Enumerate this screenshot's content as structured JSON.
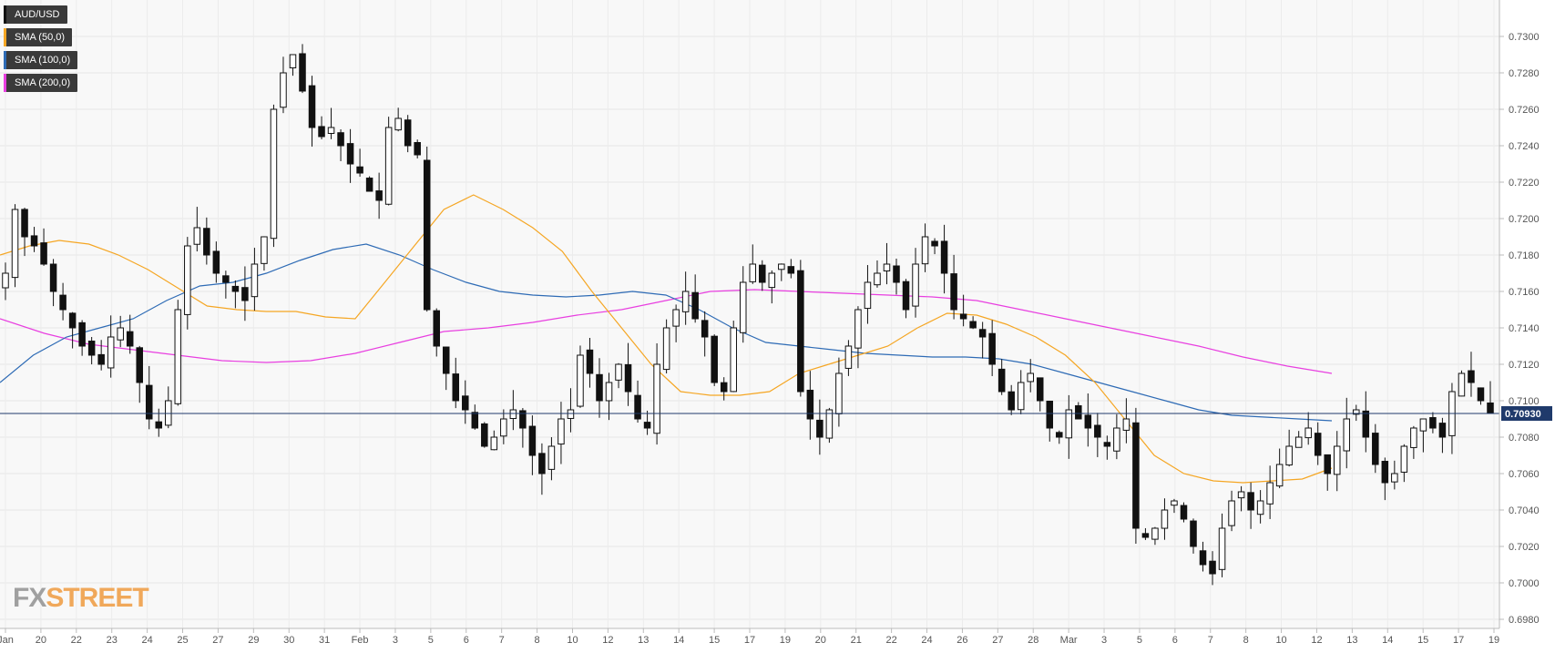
{
  "chart_data": {
    "type": "candlestick",
    "symbol": "AUD/USD",
    "indicators": [
      {
        "name": "SMA (50,0)",
        "color": "#f5a623"
      },
      {
        "name": "SMA (100,0)",
        "color": "#2e6bb5"
      },
      {
        "name": "SMA (200,0)",
        "color": "#e83fe0"
      }
    ],
    "y_ticks": [
      "0.7300",
      "0.7280",
      "0.7260",
      "0.7240",
      "0.7220",
      "0.7200",
      "0.7180",
      "0.7160",
      "0.7140",
      "0.7120",
      "0.7100",
      "0.7080",
      "0.7060",
      "0.7040",
      "0.7020",
      "0.7000",
      "0.6980"
    ],
    "ylim": [
      0.6975,
      0.732
    ],
    "x_ticks": [
      "Jan",
      "20",
      "22",
      "23",
      "24",
      "25",
      "27",
      "29",
      "30",
      "31",
      "Feb",
      "3",
      "5",
      "6",
      "7",
      "8",
      "10",
      "12",
      "13",
      "14",
      "15",
      "17",
      "19",
      "20",
      "21",
      "22",
      "24",
      "26",
      "27",
      "28",
      "Mar",
      "3",
      "5",
      "6",
      "7",
      "8",
      "10",
      "12",
      "13",
      "14",
      "15",
      "17",
      "19"
    ],
    "current_price": "0.70930",
    "current_value": 0.7093,
    "grid": true,
    "legend_position": "top-left",
    "price_path": [
      0.717,
      0.7205,
      0.719,
      0.7185,
      0.7175,
      0.716,
      0.715,
      0.714,
      0.713,
      0.7125,
      0.712,
      0.7135,
      0.714,
      0.713,
      0.711,
      0.709,
      0.7085,
      0.71,
      0.715,
      0.7185,
      0.7195,
      0.718,
      0.717,
      0.7165,
      0.716,
      0.7155,
      0.7175,
      0.719,
      0.726,
      0.728,
      0.729,
      0.727,
      0.725,
      0.7245,
      0.725,
      0.724,
      0.723,
      0.7225,
      0.7215,
      0.721,
      0.725,
      0.7255,
      0.724,
      0.7235,
      0.715,
      0.713,
      0.7115,
      0.71,
      0.7095,
      0.7085,
      0.7075,
      0.708,
      0.709,
      0.7095,
      0.7085,
      0.707,
      0.706,
      0.7075,
      0.709,
      0.7095,
      0.7125,
      0.7115,
      0.71,
      0.711,
      0.712,
      0.7105,
      0.709,
      0.7085,
      0.712,
      0.714,
      0.715,
      0.716,
      0.7145,
      0.7135,
      0.711,
      0.7105,
      0.714,
      0.7165,
      0.7175,
      0.7165,
      0.717,
      0.7175,
      0.717,
      0.7105,
      0.709,
      0.708,
      0.7095,
      0.7115,
      0.713,
      0.715,
      0.7165,
      0.717,
      0.7175,
      0.7165,
      0.715,
      0.7175,
      0.719,
      0.7185,
      0.717,
      0.715,
      0.7145,
      0.714,
      0.7135,
      0.712,
      0.7105,
      0.7095,
      0.711,
      0.7115,
      0.71,
      0.7085,
      0.708,
      0.7095,
      0.709,
      0.7085,
      0.708,
      0.7075,
      0.7085,
      0.709,
      0.703,
      0.7025,
      0.703,
      0.704,
      0.7045,
      0.7035,
      0.702,
      0.701,
      0.7005,
      0.703,
      0.7045,
      0.705,
      0.704,
      0.7045,
      0.7055,
      0.7065,
      0.7075,
      0.708,
      0.7085,
      0.707,
      0.706,
      0.7075,
      0.709,
      0.7095,
      0.708,
      0.7065,
      0.7055,
      0.706,
      0.7075,
      0.7085,
      0.709,
      0.7085,
      0.708,
      0.7105,
      0.7115,
      0.711,
      0.71,
      0.7093
    ],
    "sma50": [
      0.718,
      0.7185,
      0.7188,
      0.7186,
      0.718,
      0.7172,
      0.7162,
      0.7152,
      0.715,
      0.7149,
      0.7149,
      0.7146,
      0.7145,
      0.7165,
      0.7185,
      0.7205,
      0.7213,
      0.7205,
      0.7195,
      0.7182,
      0.716,
      0.714,
      0.712,
      0.7105,
      0.7103,
      0.7103,
      0.7105,
      0.7115,
      0.712,
      0.7125,
      0.713,
      0.714,
      0.7148,
      0.7147,
      0.7142,
      0.7135,
      0.7125,
      0.711,
      0.709,
      0.707,
      0.706,
      0.7056,
      0.7055,
      0.7056,
      0.7057,
      0.7063
    ],
    "sma100": [
      0.711,
      0.7125,
      0.7135,
      0.714,
      0.7145,
      0.7155,
      0.7163,
      0.7165,
      0.717,
      0.7177,
      0.7183,
      0.7186,
      0.718,
      0.7172,
      0.7165,
      0.716,
      0.7158,
      0.7157,
      0.7158,
      0.716,
      0.7158,
      0.715,
      0.714,
      0.7132,
      0.713,
      0.7128,
      0.7126,
      0.7125,
      0.7124,
      0.7124,
      0.7123,
      0.712,
      0.7115,
      0.711,
      0.7105,
      0.71,
      0.7095,
      0.7092,
      0.7091,
      0.709,
      0.7089
    ],
    "sma200": [
      0.7145,
      0.7137,
      0.7131,
      0.7128,
      0.7125,
      0.7122,
      0.7121,
      0.7122,
      0.7126,
      0.7132,
      0.7138,
      0.714,
      0.7143,
      0.7147,
      0.715,
      0.7155,
      0.716,
      0.7161,
      0.716,
      0.7159,
      0.7158,
      0.7157,
      0.7155,
      0.715,
      0.7145,
      0.714,
      0.7135,
      0.713,
      0.7124,
      0.7119,
      0.7115
    ]
  },
  "branding": {
    "logo_fx": "FX",
    "logo_street": "STREET"
  }
}
